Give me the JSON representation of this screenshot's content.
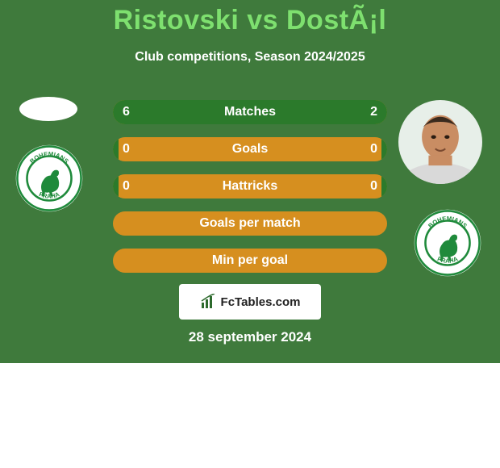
{
  "background_color": "#3f7a3c",
  "title": {
    "text": "Ristovski vs DostÃ¡l",
    "color": "#7ee06f",
    "fontsize": 34,
    "fontweight": 800
  },
  "subtitle": {
    "text": "Club competitions, Season 2024/2025",
    "color": "#ffffff",
    "fontsize": 16
  },
  "bars": {
    "track_color": "#d68f1f",
    "left_fill_color": "#2b7a2b",
    "right_fill_color": "#2b7a2b",
    "label_color": "#ffffff",
    "value_color": "#ffffff",
    "rows": [
      {
        "label": "Matches",
        "left_value": "6",
        "right_value": "2",
        "left_frac": 0.75,
        "right_frac": 0.25
      },
      {
        "label": "Goals",
        "left_value": "0",
        "right_value": "0",
        "left_frac": 0.02,
        "right_frac": 0.02
      },
      {
        "label": "Hattricks",
        "left_value": "0",
        "right_value": "0",
        "left_frac": 0.02,
        "right_frac": 0.02
      },
      {
        "label": "Goals per match",
        "left_value": "",
        "right_value": "",
        "left_frac": 0.0,
        "right_frac": 0.0
      },
      {
        "label": "Min per goal",
        "left_value": "",
        "right_value": "",
        "left_frac": 0.0,
        "right_frac": 0.0
      }
    ]
  },
  "crest": {
    "outer_ring_color": "#ffffff",
    "inner_ring_color": "#1f8a3b",
    "kangaroo_color": "#1f8a3b",
    "text_top": "BOHEMIANS",
    "text_bottom": "PRAHA",
    "text_color": "#1f8a3b"
  },
  "player_right": {
    "skin": "#c98d63",
    "hair": "#3a2a1e",
    "shirt": "#d9d9d9",
    "bg": "#e7efe9"
  },
  "branding": {
    "icon_color": "#2d6a2d",
    "text": "FcTables.com",
    "bg": "#ffffff"
  },
  "date": {
    "text": "28 september 2024",
    "color": "#ffffff",
    "fontsize": 17
  }
}
